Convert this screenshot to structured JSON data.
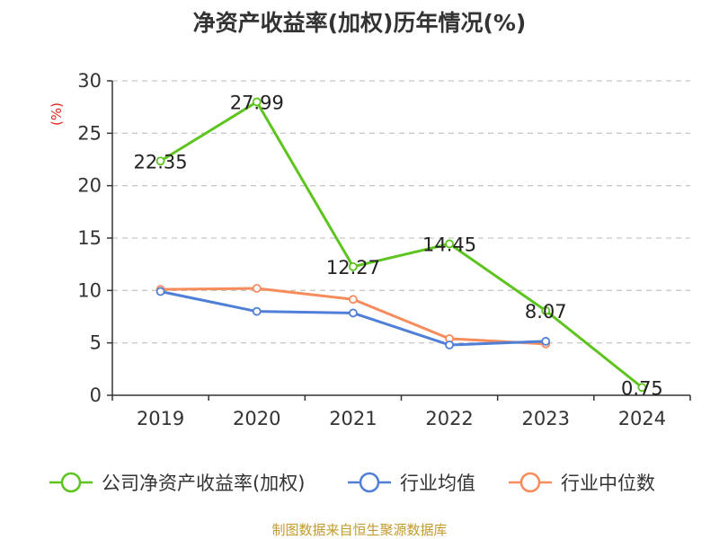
{
  "title": "净资产收益率(加权)历年情况(%)",
  "source": "制图数据来自恒生聚源数据库",
  "colors": {
    "grid": "#c8c8c8",
    "axis": "#333333",
    "unit": "#e0261b",
    "source": "#c39a2b"
  },
  "chart_data": {
    "type": "line",
    "title": "净资产收益率(加权)历年情况(%)",
    "ylabel": "(%)",
    "xlabel": "",
    "categories": [
      "2019",
      "2020",
      "2021",
      "2022",
      "2023",
      "2024"
    ],
    "ylim": [
      0,
      30
    ],
    "yticks": [
      0,
      5,
      10,
      15,
      20,
      25,
      30
    ],
    "grid": true,
    "legend_position": "bottom",
    "series": [
      {
        "name": "公司净资产收益率(加权)",
        "color": "#5dc41e",
        "values": [
          22.35,
          27.99,
          12.27,
          14.45,
          8.07,
          0.75
        ],
        "labels": [
          "22.35",
          "27.99",
          "12.27",
          "14.45",
          "8.07",
          "0.75"
        ]
      },
      {
        "name": "行业均值",
        "color": "#4f7fd6",
        "values": [
          9.9,
          8.0,
          7.85,
          4.8,
          5.15,
          null
        ]
      },
      {
        "name": "行业中位数",
        "color": "#f78b5c",
        "values": [
          10.1,
          10.2,
          9.15,
          5.4,
          4.9,
          null
        ]
      }
    ]
  }
}
